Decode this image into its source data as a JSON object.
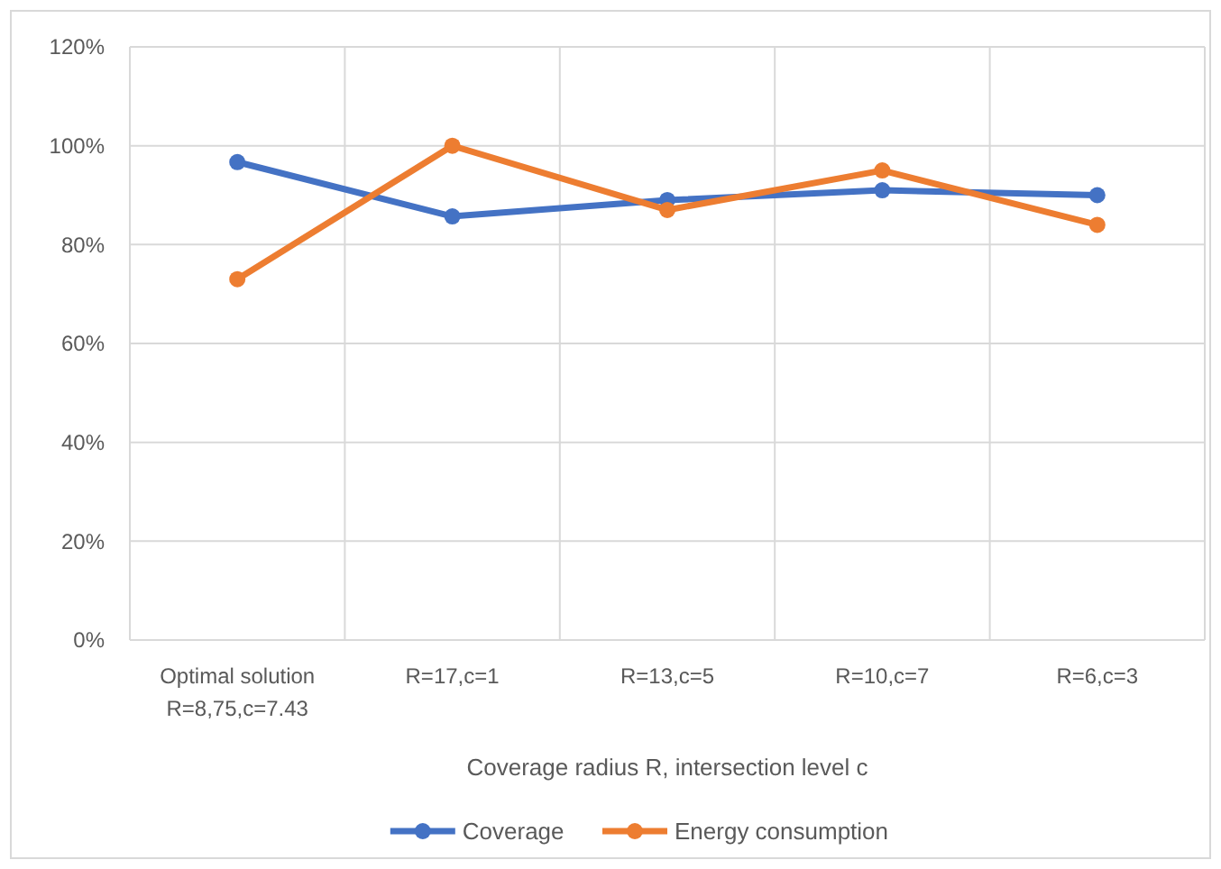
{
  "chart_data": {
    "type": "line",
    "xlabel": "Coverage radius R, intersection level c",
    "categories": [
      "Optimal solution\nR=8,75,c=7.43",
      "R=17,c=1",
      "R=13,c=5",
      "R=10,c=7",
      "R=6,c=3"
    ],
    "series": [
      {
        "name": "Coverage",
        "color": "#4472c4",
        "values": [
          96.7,
          85.7,
          89,
          91,
          90
        ]
      },
      {
        "name": "Energy consumption",
        "color": "#ed7d31",
        "values": [
          73,
          100,
          87,
          95,
          84
        ]
      }
    ],
    "ylim": [
      0,
      120
    ],
    "yticks": [
      {
        "value": 0,
        "label": "0%"
      },
      {
        "value": 20,
        "label": "20%"
      },
      {
        "value": 40,
        "label": "40%"
      },
      {
        "value": 60,
        "label": "60%"
      },
      {
        "value": 80,
        "label": "80%"
      },
      {
        "value": 100,
        "label": "100%"
      },
      {
        "value": 120,
        "label": "120%"
      }
    ],
    "grid": true,
    "legend": "bottom",
    "marker": "circle",
    "line_style": "solid"
  }
}
